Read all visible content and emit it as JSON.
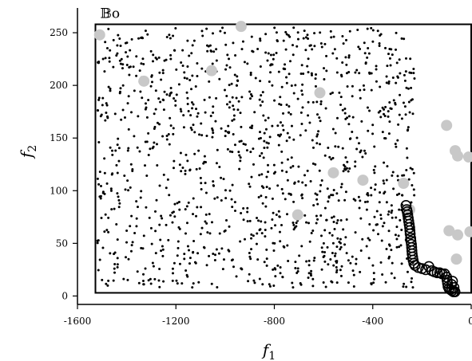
{
  "chart_data": {
    "type": "scatter",
    "title": "",
    "xlabel": "f1",
    "ylabel": "f2",
    "xlim": [
      -1600,
      0
    ],
    "ylim": [
      -8,
      272
    ],
    "xticks": [
      -1600,
      -1200,
      -800,
      -400,
      0
    ],
    "xtick_labels": [
      "-1600",
      "-1200",
      "-800",
      "-400",
      "0"
    ],
    "yticks": [
      0,
      50,
      100,
      150,
      200,
      250
    ],
    "ytick_labels": [
      "0",
      "50",
      "100",
      "150",
      "200",
      "250"
    ],
    "box": {
      "label": "𝔹o",
      "x0": -1527,
      "x1": 0,
      "y0": 3,
      "y1": 258
    },
    "series": [
      {
        "kind": "background",
        "count": 1300,
        "region": {
          "x": [
            -1520,
            -230
          ],
          "y": [
            8,
            255
          ]
        },
        "seed": 12345,
        "color": "#000000"
      },
      {
        "kind": "gray-circles",
        "color": "#c8c8c8",
        "points": [
          [
            -1510,
            248
          ],
          [
            -1330,
            204
          ],
          [
            -1055,
            214
          ],
          [
            -935,
            256
          ],
          [
            -615,
            193
          ],
          [
            -560,
            117
          ],
          [
            -440,
            110
          ],
          [
            -705,
            77
          ],
          [
            -275,
            107
          ],
          [
            -250,
            82
          ],
          [
            -100,
            162
          ],
          [
            -65,
            138
          ],
          [
            -55,
            133
          ],
          [
            -10,
            132
          ],
          [
            -90,
            62
          ],
          [
            -55,
            58
          ],
          [
            -5,
            61
          ],
          [
            -60,
            35
          ]
        ]
      },
      {
        "kind": "front-circles",
        "color": "#000000",
        "points": [
          [
            -265,
            86
          ],
          [
            -262,
            82
          ],
          [
            -260,
            80
          ],
          [
            -258,
            77
          ],
          [
            -256,
            74
          ],
          [
            -254,
            71
          ],
          [
            -252,
            68
          ],
          [
            -250,
            65
          ],
          [
            -249,
            62
          ],
          [
            -248,
            59
          ],
          [
            -246,
            55
          ],
          [
            -245,
            52
          ],
          [
            -243,
            49
          ],
          [
            -242,
            46
          ],
          [
            -241,
            43
          ],
          [
            -240,
            40
          ],
          [
            -238,
            37
          ],
          [
            -236,
            34
          ],
          [
            -233,
            31
          ],
          [
            -228,
            29
          ],
          [
            -215,
            27
          ],
          [
            -200,
            26
          ],
          [
            -185,
            25
          ],
          [
            -172,
            28
          ],
          [
            -160,
            24
          ],
          [
            -150,
            23
          ],
          [
            -138,
            22
          ],
          [
            -128,
            22
          ],
          [
            -118,
            21
          ],
          [
            -108,
            21
          ],
          [
            -100,
            18
          ],
          [
            -98,
            15
          ],
          [
            -96,
            12
          ],
          [
            -94,
            9
          ],
          [
            -90,
            7
          ],
          [
            -84,
            6
          ],
          [
            -78,
            5
          ],
          [
            -72,
            4
          ],
          [
            -66,
            4
          ],
          [
            -80,
            11
          ],
          [
            -76,
            14
          ],
          [
            -70,
            8
          ]
        ]
      }
    ]
  }
}
